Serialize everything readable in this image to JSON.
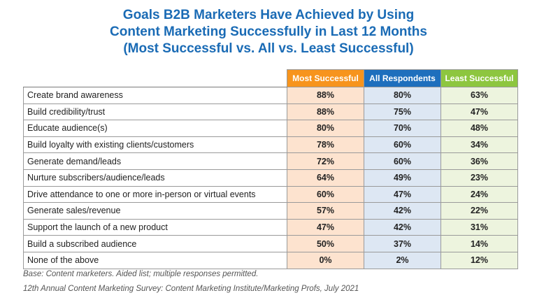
{
  "chart_data": {
    "type": "table",
    "title_lines": [
      "Goals B2B Marketers Have Achieved by Using",
      "Content Marketing Successfully in Last 12 Months",
      "(Most Successful vs. All vs. Least Successful)"
    ],
    "columns": [
      "Most Successful",
      "All Respondents",
      "Least Successful"
    ],
    "rows": [
      {
        "label": "Create brand awareness",
        "values": [
          "88%",
          "80%",
          "63%"
        ]
      },
      {
        "label": "Build credibility/trust",
        "values": [
          "88%",
          "75%",
          "47%"
        ]
      },
      {
        "label": "Educate audience(s)",
        "values": [
          "80%",
          "70%",
          "48%"
        ]
      },
      {
        "label": "Build loyalty with existing clients/customers",
        "values": [
          "78%",
          "60%",
          "34%"
        ]
      },
      {
        "label": "Generate demand/leads",
        "values": [
          "72%",
          "60%",
          "36%"
        ]
      },
      {
        "label": "Nurture subscribers/audience/leads",
        "values": [
          "64%",
          "49%",
          "23%"
        ]
      },
      {
        "label": "Drive attendance to one or more in-person or virtual events",
        "values": [
          "60%",
          "47%",
          "24%"
        ]
      },
      {
        "label": "Generate sales/revenue",
        "values": [
          "57%",
          "42%",
          "22%"
        ]
      },
      {
        "label": "Support the launch of a new product",
        "values": [
          "47%",
          "42%",
          "31%"
        ]
      },
      {
        "label": "Build a subscribed audience",
        "values": [
          "50%",
          "37%",
          "14%"
        ]
      },
      {
        "label": "None of the above",
        "values": [
          "0%",
          "2%",
          "12%"
        ]
      }
    ],
    "notes": [
      "Base: Content marketers. Aided list; multiple responses permitted.",
      "12th Annual Content Marketing Survey: Content Marketing Institute/Marketing Profs, July 2021"
    ]
  },
  "colors": {
    "title": "#1a6bb5",
    "most_successful": "#f7941d",
    "all_respondents": "#1e6fbd",
    "least_successful": "#8dc63f"
  }
}
